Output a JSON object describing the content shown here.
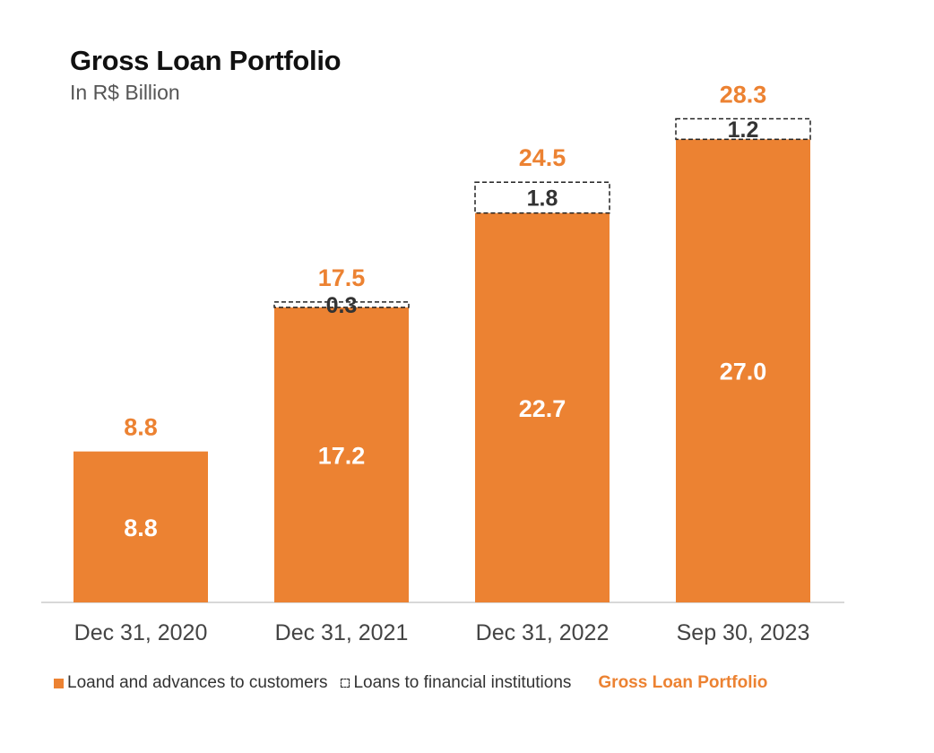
{
  "chart_data": {
    "type": "bar",
    "title": "Gross Loan Portfolio",
    "subtitle": "In R$ Billion",
    "categories": [
      "Dec 31, 2020",
      "Dec 31, 2021",
      "Dec 31, 2022",
      "Sep 30, 2023"
    ],
    "series": [
      {
        "name": "Loand and advances to customers",
        "values": [
          8.8,
          17.2,
          22.7,
          27.0
        ],
        "labels": [
          "8.8",
          "17.2",
          "22.7",
          "27.0"
        ]
      },
      {
        "name": "Loans to financial institutions",
        "values": [
          0,
          0.3,
          1.8,
          1.2
        ],
        "labels": [
          "",
          "0.3",
          "1.8",
          "1.2"
        ]
      }
    ],
    "totals": {
      "name": "Gross Loan Portfolio",
      "values": [
        8.8,
        17.5,
        24.5,
        28.3
      ],
      "labels": [
        "8.8",
        "17.5",
        "24.5",
        "28.3"
      ]
    },
    "ylim": [
      0,
      30
    ],
    "stacked": true,
    "colors": {
      "customers": "#EC8232",
      "total_label": "#EC8232",
      "fi_label": "#333333",
      "axis": "#cccccc"
    }
  }
}
